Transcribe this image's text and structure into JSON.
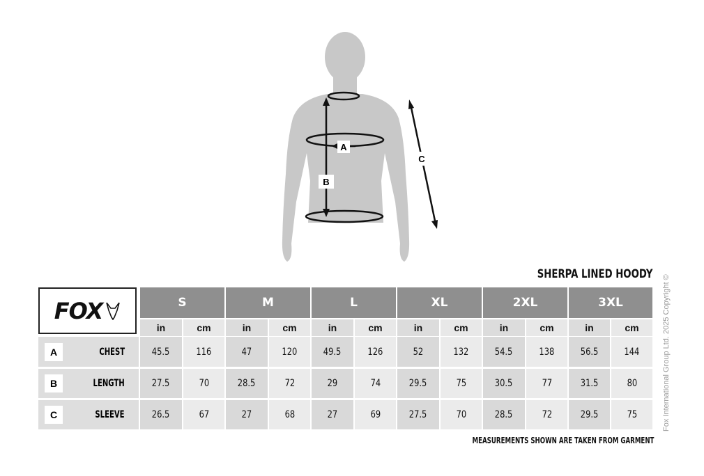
{
  "product_title": "SHERPA LINED HOODY",
  "brand": "FOX",
  "sizes": [
    "S",
    "M",
    "L",
    "XL",
    "2XL",
    "3XL"
  ],
  "units": [
    "in",
    "cm"
  ],
  "rows": [
    {
      "letter": "A",
      "label": "CHEST",
      "values": [
        "45.5",
        "116",
        "47",
        "120",
        "49.5",
        "126",
        "52",
        "132",
        "54.5",
        "138",
        "56.5",
        "144"
      ]
    },
    {
      "letter": "B",
      "label": "LENGTH",
      "values": [
        "27.5",
        "70",
        "28.5",
        "72",
        "29",
        "74",
        "29.5",
        "75",
        "30.5",
        "77",
        "31.5",
        "80"
      ]
    },
    {
      "letter": "C",
      "label": "SLEEVE",
      "values": [
        "26.5",
        "67",
        "27",
        "68",
        "27",
        "69",
        "27.5",
        "70",
        "28.5",
        "72",
        "29.5",
        "75"
      ]
    }
  ],
  "figure_labels": {
    "a": "A",
    "b": "B",
    "c": "C"
  },
  "footer": "MEASUREMENTS SHOWN ARE TAKEN FROM GARMENT",
  "copyright": "Fox International Group Ltd. 2025 Copyright ©",
  "colors": {
    "size_header": "#8f8f8f",
    "in_cell": "#d9d9d9",
    "cm_cell": "#ebebeb",
    "silhouette": "#c8c8c8"
  }
}
